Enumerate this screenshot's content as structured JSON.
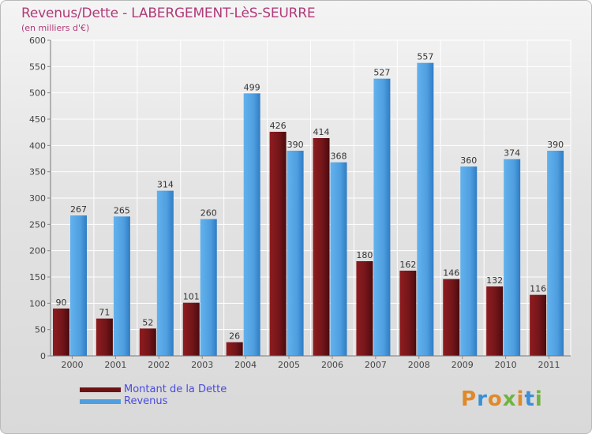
{
  "header": {
    "title": "Revenus/Dette - LABERGEMENT-LèS-SEURRE",
    "subtitle": "(en milliers d'€)"
  },
  "colors": {
    "dette": "#7a1517",
    "revenus": "#4f9fe0",
    "title": "#b03a78"
  },
  "legend": [
    {
      "label": "Montant de la Dette",
      "color": "#7a1517"
    },
    {
      "label": "Revenus",
      "color": "#4f9fe0"
    }
  ],
  "logo": {
    "text": "Proxiti"
  },
  "chart_data": {
    "type": "bar",
    "title": "Revenus/Dette - LABERGEMENT-LèS-SEURRE",
    "subtitle": "(en milliers d'€)",
    "xlabel": "",
    "ylabel": "",
    "ylim": [
      0,
      600
    ],
    "yticks": [
      0,
      50,
      100,
      150,
      200,
      250,
      300,
      350,
      400,
      450,
      500,
      550,
      600
    ],
    "grid": true,
    "legend_position": "bottom-left",
    "categories": [
      "2000",
      "2001",
      "2002",
      "2003",
      "2004",
      "2005",
      "2006",
      "2007",
      "2008",
      "2009",
      "2010",
      "2011"
    ],
    "series": [
      {
        "name": "Montant de la Dette",
        "color": "#7a1517",
        "values": [
          90,
          71,
          52,
          101,
          26,
          426,
          414,
          180,
          162,
          146,
          132,
          116
        ]
      },
      {
        "name": "Revenus",
        "color": "#4f9fe0",
        "values": [
          267,
          265,
          314,
          260,
          499,
          390,
          368,
          527,
          557,
          360,
          374,
          390
        ]
      }
    ]
  }
}
